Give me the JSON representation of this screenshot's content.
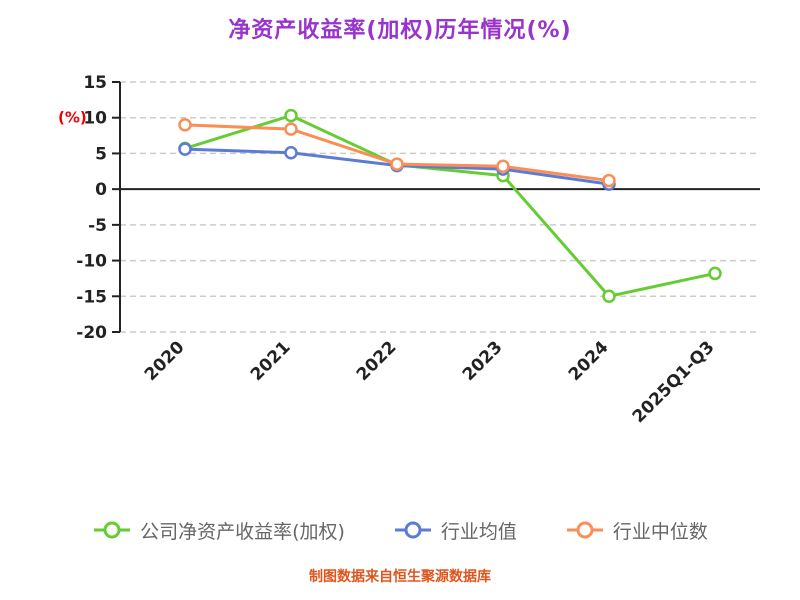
{
  "title": "净资产收益率(加权)历年情况(%)",
  "footer": "制图数据来自恒生聚源数据库",
  "colors": {
    "title": "#9933CC",
    "ylabel": "#EE0000",
    "footer": "#E0551E",
    "axis": "#222222",
    "grid": "#CCCCCC",
    "legend_text": "#666666"
  },
  "chart_data": {
    "type": "line",
    "title": "净资产收益率(加权)历年情况(%)",
    "xlabel": "",
    "ylabel": "(%)",
    "categories": [
      "2020",
      "2021",
      "2022",
      "2023",
      "2024",
      "2025Q1-Q3"
    ],
    "y_ticks": [
      15,
      10,
      5,
      0,
      -5,
      -10,
      -15,
      -20
    ],
    "ylim": [
      -20,
      15
    ],
    "grid": "horizontal dashed",
    "legend_position": "bottom",
    "marker": "open-circle",
    "series": [
      {
        "name": "公司净资产收益率(加权)",
        "color": "#66CC33",
        "values": [
          5.7,
          10.3,
          3.4,
          1.9,
          -15.0,
          -11.8
        ]
      },
      {
        "name": "行业均值",
        "color": "#5B7BD5",
        "values": [
          5.6,
          5.1,
          3.3,
          2.8,
          0.7,
          null
        ]
      },
      {
        "name": "行业中位数",
        "color": "#FB8E54",
        "values": [
          9.0,
          8.4,
          3.5,
          3.2,
          1.2,
          null
        ]
      }
    ]
  }
}
